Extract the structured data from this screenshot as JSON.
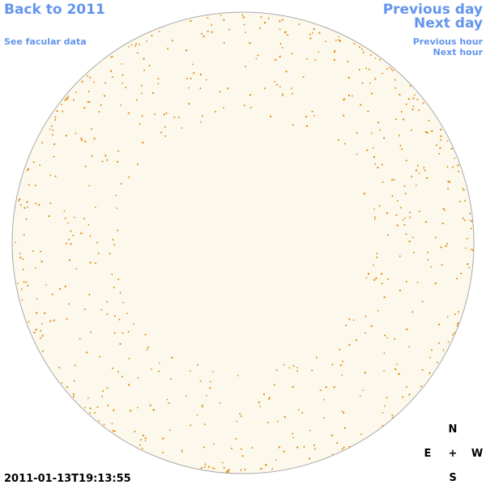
{
  "header": {
    "back_link": "Back to 2011",
    "facular_link": "See facular data",
    "previous_day": "Previous day",
    "next_day": "Next day",
    "previous_hour": "Previous hour",
    "next_hour": "Next hour"
  },
  "timestamp": "2011-01-13T19:13:55",
  "compass": {
    "north": "N",
    "east": "E",
    "center": "+",
    "west": "W",
    "south": "S"
  }
}
